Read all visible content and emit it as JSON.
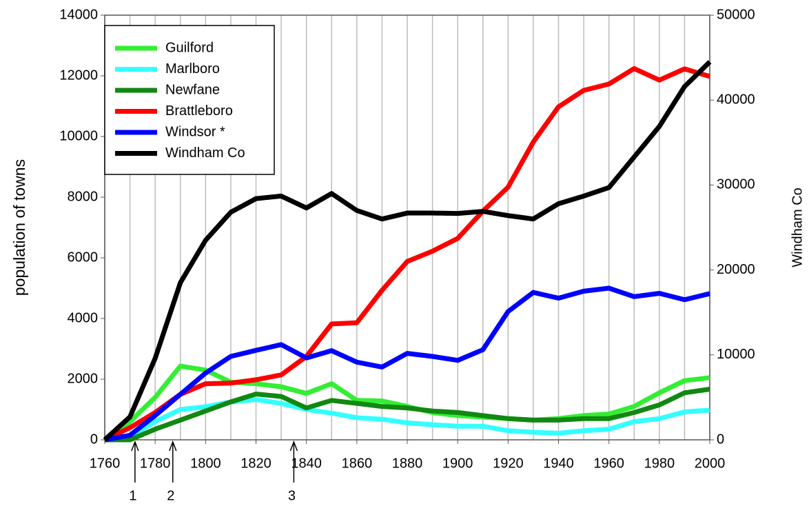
{
  "chart_data": {
    "type": "line",
    "ylabel": "population of towns",
    "y2label": "Windham Co",
    "x": [
      1760,
      1770,
      1780,
      1790,
      1800,
      1810,
      1820,
      1830,
      1840,
      1850,
      1860,
      1870,
      1880,
      1890,
      1900,
      1910,
      1920,
      1930,
      1940,
      1950,
      1960,
      1970,
      1980,
      1990,
      2000
    ],
    "xlim": [
      1760,
      2000
    ],
    "xticks": [
      1760,
      1780,
      1800,
      1820,
      1840,
      1860,
      1880,
      1900,
      1920,
      1940,
      1960,
      1980,
      2000
    ],
    "ylim": [
      0,
      14000
    ],
    "yticks": [
      0,
      2000,
      4000,
      6000,
      8000,
      10000,
      12000,
      14000
    ],
    "y2lim": [
      0,
      50000
    ],
    "y2ticks": [
      0,
      10000,
      20000,
      30000,
      40000,
      50000
    ],
    "grid": true,
    "legend": "upper left",
    "series": [
      {
        "name": "Guilford",
        "color": "#33ee33",
        "values": [
          0,
          600,
          1400,
          2430,
          2300,
          1900,
          1850,
          1750,
          1530,
          1850,
          1300,
          1280,
          1100,
          900,
          800,
          750,
          700,
          650,
          700,
          800,
          850,
          1100,
          1550,
          1950,
          2050
        ]
      },
      {
        "name": "Marlboro",
        "color": "#33ffff",
        "values": [
          0,
          100,
          600,
          1000,
          1090,
          1250,
          1330,
          1200,
          1000,
          880,
          730,
          680,
          560,
          500,
          450,
          450,
          300,
          250,
          220,
          300,
          350,
          600,
          700,
          920,
          980
        ]
      },
      {
        "name": "Newfane",
        "color": "#118811",
        "values": [
          0,
          0,
          350,
          650,
          950,
          1250,
          1510,
          1430,
          1050,
          1300,
          1200,
          1100,
          1050,
          950,
          900,
          800,
          700,
          650,
          650,
          700,
          700,
          900,
          1150,
          1550,
          1670
        ]
      },
      {
        "name": "Brattleboro",
        "color": "#ff0000",
        "values": [
          0,
          400,
          900,
          1500,
          1850,
          1870,
          1980,
          2140,
          2750,
          3820,
          3860,
          4930,
          5880,
          6220,
          6640,
          7540,
          8330,
          9820,
          10980,
          11520,
          11730,
          12240,
          11860,
          12230,
          11980
        ]
      },
      {
        "name": "Windsor *",
        "color": "#0000ff",
        "values": [
          0,
          150,
          800,
          1500,
          2200,
          2750,
          2950,
          3140,
          2700,
          2940,
          2560,
          2400,
          2850,
          2750,
          2620,
          2970,
          4230,
          4860,
          4670,
          4900,
          5000,
          4720,
          4830,
          4620,
          4820
        ]
      },
      {
        "name": "Windham Co",
        "color": "#000000",
        "axis": "y2",
        "values": [
          0,
          2700,
          9600,
          18500,
          23500,
          26800,
          28400,
          28700,
          27300,
          29000,
          27000,
          26000,
          26700,
          26700,
          26650,
          26900,
          26400,
          26000,
          27800,
          28700,
          29700,
          33300,
          36900,
          41600,
          44500
        ]
      }
    ],
    "annotations": [
      {
        "label": "1",
        "x": 1772
      },
      {
        "label": "2",
        "x": 1787
      },
      {
        "label": "3",
        "x": 1835
      }
    ]
  }
}
